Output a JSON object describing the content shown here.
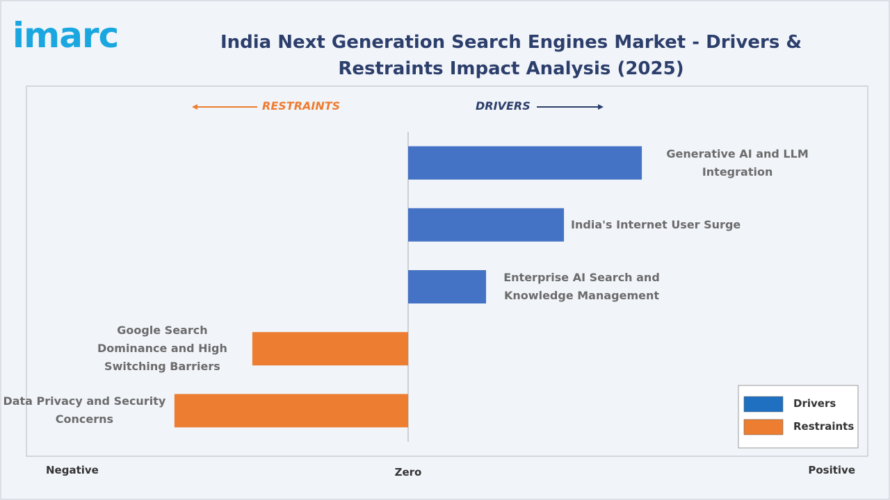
{
  "chart_data": {
    "type": "diverging-bar",
    "brand": "imarc",
    "title": "India Next Generation Search Engines Market - Drivers & Restraints Impact Analysis (2025)",
    "annotations": [
      "RESTRAINTS",
      "DRIVERS"
    ],
    "categories": [
      "Generative AI and LLM Integration",
      "India's Internet User Surge",
      "Enterprise AI Search and Knowledge Management",
      "Google Search Dominance and High Switching Barriers",
      "Data Privacy and Security Concerns"
    ],
    "series": [
      {
        "name": "Drivers",
        "color": "#4472c4",
        "legend_color": "#1f70c1",
        "values": [
          3,
          2,
          1,
          null,
          null
        ]
      },
      {
        "name": "Restraints",
        "color": "#ed7d31",
        "legend_color": "#ed7d31",
        "values": [
          null,
          null,
          null,
          -2,
          -3
        ]
      }
    ],
    "xlim": [
      -4.9,
      5.9
    ],
    "xticks": [
      {
        "value": -4.9,
        "label": "Negative"
      },
      {
        "value": 0,
        "label": "Zero"
      },
      {
        "value": 5.9,
        "label": "Positive"
      }
    ],
    "legend": "lower right"
  }
}
